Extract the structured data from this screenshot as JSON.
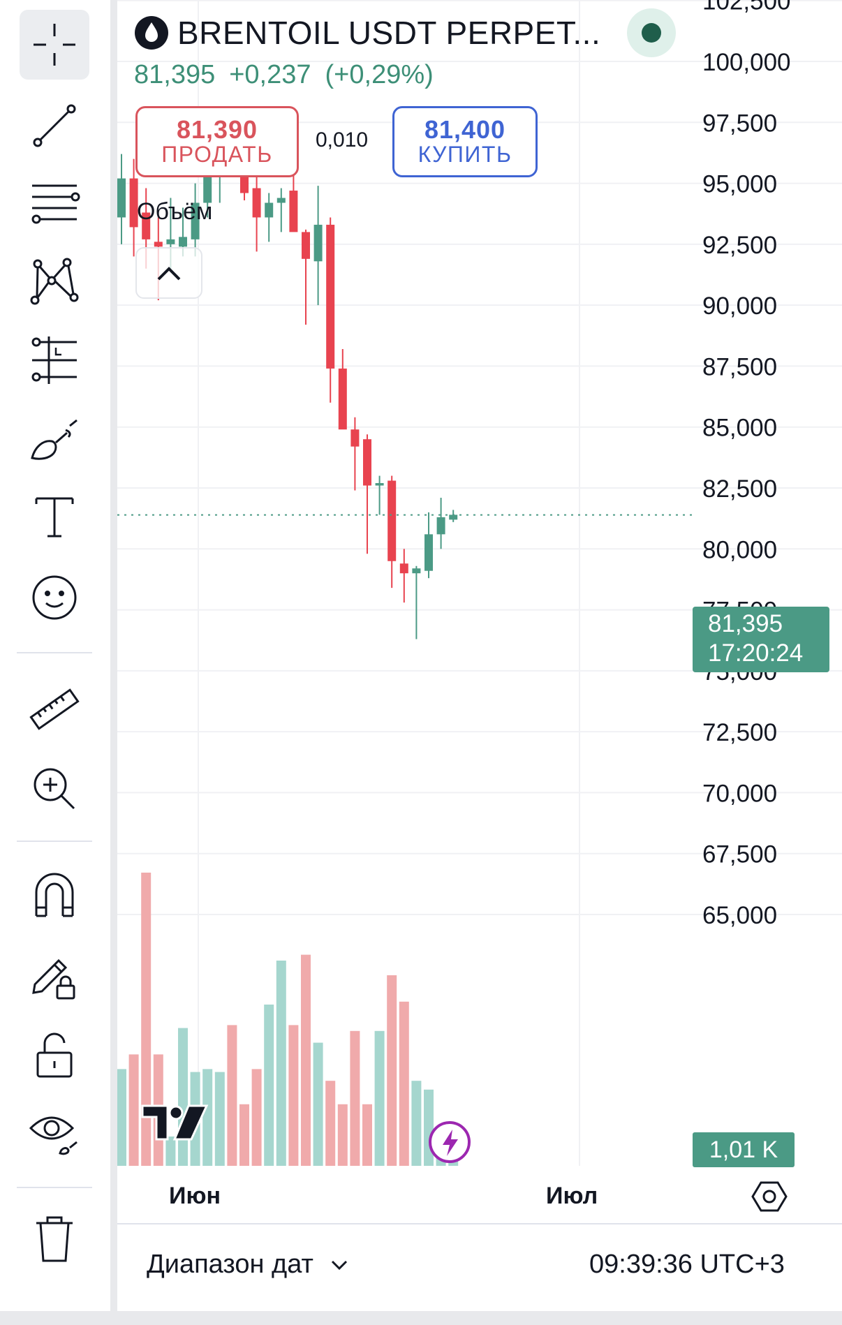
{
  "header": {
    "symbol": "BRENTOIL USDT PERPET...",
    "last": "81,395",
    "change": "+0,237",
    "change_pct": "(+0,29%)"
  },
  "trade": {
    "sell_price": "81,390",
    "sell_label": "ПРОДАТЬ",
    "spread": "0,010",
    "buy_price": "81,400",
    "buy_label": "КУПИТЬ"
  },
  "indicator": {
    "volume_label": "Объём"
  },
  "axis": {
    "last_price": "81,395",
    "countdown": "17:20:24",
    "volume_value": "1,01 K"
  },
  "time_axis": {
    "months": [
      "Июн",
      "Июл"
    ]
  },
  "bottom": {
    "date_range": "Диапазон дат",
    "clock": "09:39:36 UTC+3"
  },
  "colors": {
    "up": "#4b9a85",
    "down": "#e8434f",
    "up_volume": "#a5d6ce",
    "down_volume": "#f0aaab",
    "sell": "#d9545c",
    "buy": "#3f64d3"
  },
  "toolbar": {
    "tools": [
      "crosshair-icon",
      "trend-line-icon",
      "fib-retracement-icon",
      "pattern-icon",
      "long-position-icon",
      "brush-icon",
      "text-icon",
      "emoji-icon",
      "ruler-icon",
      "zoom-in-icon",
      "magnet-icon",
      "lock-drawing-icon",
      "unlock-icon",
      "eye-icon",
      "trash-icon"
    ]
  },
  "chart_data": {
    "type": "candlestick",
    "y_ticks": [
      "102,500",
      "100,000",
      "97,500",
      "95,000",
      "92,500",
      "90,000",
      "87,500",
      "85,000",
      "82,500",
      "80,000",
      "77,500",
      "75,000",
      "72,500",
      "70,000",
      "67,500",
      "65,000"
    ],
    "ylim": [
      64000,
      103000
    ],
    "last_price": 81.395,
    "candles": [
      {
        "o": 93.6,
        "h": 96.2,
        "l": 92.5,
        "c": 95.2
      },
      {
        "o": 95.2,
        "h": 96.0,
        "l": 92.0,
        "c": 93.2
      },
      {
        "o": 93.8,
        "h": 94.8,
        "l": 91.5,
        "c": 92.7
      },
      {
        "o": 92.6,
        "h": 93.6,
        "l": 90.2,
        "c": 92.4
      },
      {
        "o": 92.5,
        "h": 94.4,
        "l": 91.5,
        "c": 92.7
      },
      {
        "o": 92.4,
        "h": 94.0,
        "l": 92.0,
        "c": 92.8
      },
      {
        "o": 92.7,
        "h": 95.0,
        "l": 92.0,
        "c": 94.2
      },
      {
        "o": 94.2,
        "h": 97.0,
        "l": 93.6,
        "c": 96.6
      },
      {
        "o": 96.5,
        "h": 97.6,
        "l": 94.2,
        "c": 96.8
      },
      {
        "o": 96.6,
        "h": 97.8,
        "l": 95.8,
        "c": 95.6
      },
      {
        "o": 95.8,
        "h": 96.2,
        "l": 94.3,
        "c": 94.6
      },
      {
        "o": 94.8,
        "h": 95.6,
        "l": 92.2,
        "c": 93.6
      },
      {
        "o": 93.6,
        "h": 94.6,
        "l": 92.6,
        "c": 94.2
      },
      {
        "o": 94.2,
        "h": 94.8,
        "l": 93.0,
        "c": 94.4
      },
      {
        "o": 94.7,
        "h": 96.4,
        "l": 93.4,
        "c": 93.0
      },
      {
        "o": 93.0,
        "h": 93.1,
        "l": 89.2,
        "c": 91.9
      },
      {
        "o": 91.8,
        "h": 94.9,
        "l": 90.0,
        "c": 93.3
      },
      {
        "o": 93.3,
        "h": 93.6,
        "l": 86.0,
        "c": 87.4
      },
      {
        "o": 87.4,
        "h": 88.2,
        "l": 85.6,
        "c": 84.9
      },
      {
        "o": 84.9,
        "h": 85.4,
        "l": 82.4,
        "c": 84.2
      },
      {
        "o": 84.5,
        "h": 84.7,
        "l": 79.8,
        "c": 82.6
      },
      {
        "o": 82.6,
        "h": 83.0,
        "l": 81.4,
        "c": 82.7
      },
      {
        "o": 82.8,
        "h": 83.0,
        "l": 78.4,
        "c": 79.5
      },
      {
        "o": 79.4,
        "h": 80.0,
        "l": 77.8,
        "c": 79.0
      },
      {
        "o": 79.0,
        "h": 79.3,
        "l": 76.3,
        "c": 79.2
      },
      {
        "o": 79.1,
        "h": 81.5,
        "l": 78.8,
        "c": 80.6
      },
      {
        "o": 80.6,
        "h": 82.1,
        "l": 80.0,
        "c": 81.3
      },
      {
        "o": 81.2,
        "h": 81.6,
        "l": 81.1,
        "c": 81.4
      }
    ],
    "volume_max": 1.0,
    "volumes": [
      0.33,
      0.38,
      1.0,
      0.38,
      0.1,
      0.47,
      0.32,
      0.33,
      0.32,
      0.48,
      0.21,
      0.33,
      0.55,
      0.7,
      0.48,
      0.72,
      0.42,
      0.29,
      0.21,
      0.46,
      0.21,
      0.46,
      0.65,
      0.56,
      0.29,
      0.26,
      0.08,
      0.05
    ],
    "grid": true
  }
}
